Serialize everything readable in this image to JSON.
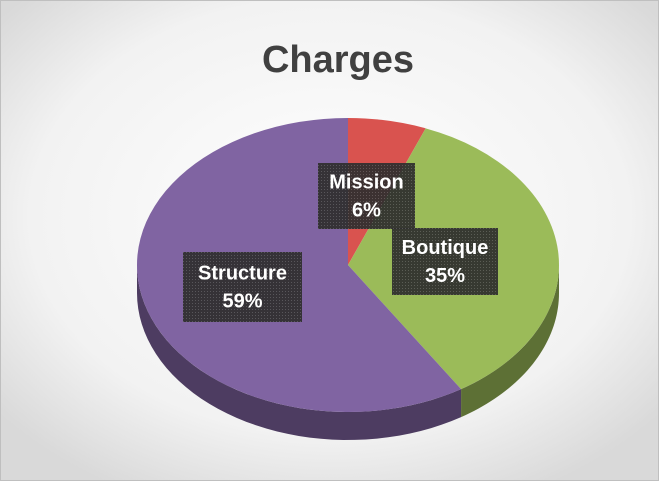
{
  "chart_data": {
    "type": "pie",
    "title": "Charges",
    "categories": [
      "Mission",
      "Boutique",
      "Structure"
    ],
    "values": [
      6,
      35,
      59
    ],
    "value_labels": [
      "6%",
      "35%",
      "59%"
    ],
    "colors": [
      "#d9534f",
      "#9bbb59",
      "#8064a2"
    ]
  }
}
